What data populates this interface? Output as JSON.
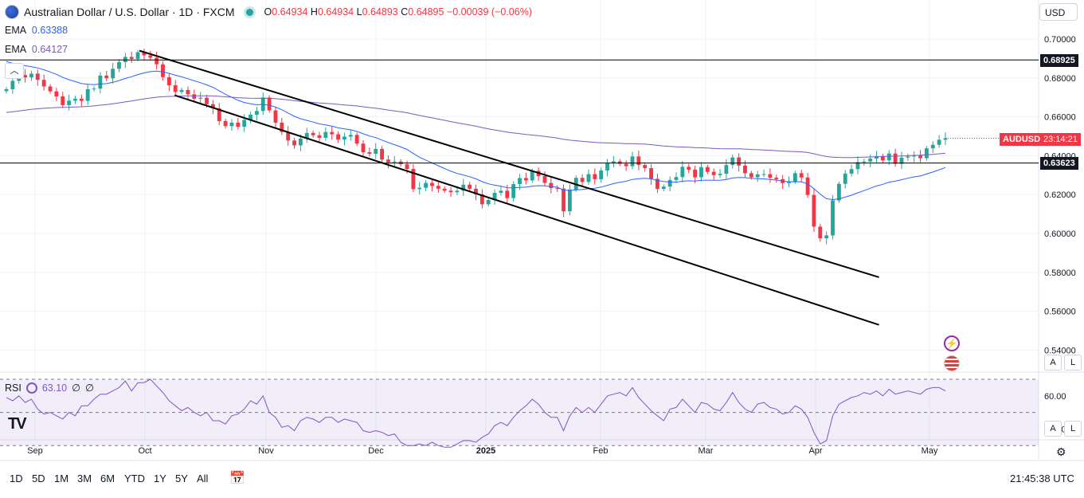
{
  "header": {
    "symbol_title": "Australian Dollar / U.S. Dollar · 1D · FXCM",
    "open_label": "O",
    "open": "0.64934",
    "high_label": "H",
    "high": "0.64934",
    "low_label": "L",
    "low": "0.64893",
    "close_label": "C",
    "close": "0.64895",
    "change": "−0.00039 (−0.06%)"
  },
  "indicators": {
    "ema1_label": "EMA",
    "ema1_value": "0.63388",
    "ema2_label": "EMA",
    "ema2_value": "0.64127",
    "rsi_label": "RSI",
    "rsi_value": "63.10",
    "rsi_extra1": "∅",
    "rsi_extra2": "∅"
  },
  "currency": "USD",
  "price_tags": {
    "hline_upper": "0.68925",
    "hline_lower": "0.63623",
    "symbol_label": "AUDUSD",
    "countdown": "23:14:21"
  },
  "y_axis_labels": [
    "0.70000",
    "0.68000",
    "0.66000",
    "0.64000",
    "0.62000",
    "0.60000",
    "0.58000",
    "0.56000",
    "0.54000"
  ],
  "rsi_axis_labels": [
    "60.00",
    "40.00"
  ],
  "x_axis_labels": [
    "Sep",
    "Oct",
    "Nov",
    "Dec",
    "2025",
    "Feb",
    "Mar",
    "Apr",
    "May"
  ],
  "range_buttons": [
    "1D",
    "5D",
    "1M",
    "3M",
    "6M",
    "YTD",
    "1Y",
    "5Y",
    "All"
  ],
  "clock": "21:45:38 UTC",
  "scale_buttons": {
    "auto": "A",
    "log": "L"
  },
  "collapse_icon": "chevron-up-icon",
  "logo_text": "TV",
  "colors": {
    "up": "#26a69a",
    "down": "#f23645",
    "ema_fast": "#2962ff",
    "ema_slow": "#7e57c2",
    "rsi": "#7e57c2",
    "tag": "#f23645"
  },
  "chart_data": [
    {
      "type": "candlestick",
      "title": "Australian Dollar / U.S. Dollar · 1D · FXCM",
      "x_labels": [
        "Sep",
        "Oct",
        "Nov",
        "Dec",
        "2025",
        "Feb",
        "Mar",
        "Apr",
        "May"
      ],
      "ylim": [
        0.535,
        0.708
      ],
      "grid": true,
      "closes": [
        0.6742,
        0.6785,
        0.6815,
        0.6803,
        0.6822,
        0.679,
        0.6756,
        0.6731,
        0.6705,
        0.666,
        0.6683,
        0.6693,
        0.6682,
        0.6742,
        0.6745,
        0.6812,
        0.6798,
        0.6847,
        0.6881,
        0.6908,
        0.6898,
        0.6932,
        0.6916,
        0.6904,
        0.687,
        0.6804,
        0.6762,
        0.6728,
        0.6738,
        0.6716,
        0.6693,
        0.6698,
        0.6665,
        0.6644,
        0.6578,
        0.6552,
        0.657,
        0.6549,
        0.6584,
        0.6611,
        0.663,
        0.6699,
        0.6633,
        0.657,
        0.6522,
        0.6478,
        0.6453,
        0.6488,
        0.6517,
        0.6505,
        0.6492,
        0.6522,
        0.651,
        0.6483,
        0.6498,
        0.6507,
        0.6462,
        0.6418,
        0.641,
        0.6435,
        0.638,
        0.6366,
        0.637,
        0.6356,
        0.6332,
        0.6228,
        0.6235,
        0.626,
        0.6245,
        0.623,
        0.622,
        0.6212,
        0.622,
        0.6251,
        0.623,
        0.6201,
        0.615,
        0.6172,
        0.6209,
        0.622,
        0.6182,
        0.6254,
        0.6285,
        0.6273,
        0.6322,
        0.6295,
        0.626,
        0.6233,
        0.6231,
        0.6114,
        0.6226,
        0.6286,
        0.6265,
        0.6305,
        0.6279,
        0.6324,
        0.6362,
        0.6371,
        0.6358,
        0.6346,
        0.6396,
        0.6352,
        0.6336,
        0.6281,
        0.6229,
        0.6241,
        0.6275,
        0.629,
        0.6343,
        0.6328,
        0.6289,
        0.6341,
        0.6317,
        0.63,
        0.6307,
        0.6352,
        0.6391,
        0.6349,
        0.631,
        0.6289,
        0.6304,
        0.6305,
        0.6287,
        0.6279,
        0.6259,
        0.6267,
        0.631,
        0.6288,
        0.6198,
        0.6035,
        0.5975,
        0.599,
        0.617,
        0.6255,
        0.6308,
        0.6331,
        0.6367,
        0.637,
        0.6385,
        0.6398,
        0.6376,
        0.6411,
        0.6358,
        0.639,
        0.6396,
        0.6402,
        0.6387,
        0.6438,
        0.6456,
        0.6482,
        0.649
      ],
      "opens_offset": "derived",
      "ema_fast_last": 0.63388,
      "ema_slow_last": 0.64127,
      "horizontal_lines": [
        0.68925,
        0.63623
      ],
      "channel_lines": [
        {
          "start": {
            "date": "2024-09-30",
            "price": 0.694
          },
          "end": {
            "date": "2025-04-07",
            "price": 0.5775
          }
        },
        {
          "start": {
            "date": "2024-10-09",
            "price": 0.6711
          },
          "end": {
            "date": "2025-04-07",
            "price": 0.553
          }
        }
      ]
    },
    {
      "type": "line",
      "title": "RSI",
      "ylim": [
        24,
        76
      ],
      "bands": [
        30,
        50,
        70
      ],
      "last_value": 63.1,
      "values": [
        59,
        57,
        60,
        56,
        58,
        52,
        49,
        50,
        48,
        46,
        50,
        48,
        54,
        54,
        58,
        61,
        61,
        63,
        65,
        69,
        63,
        68,
        68,
        70,
        66,
        62,
        57,
        54,
        51,
        53,
        50,
        48,
        50,
        45,
        45,
        43,
        48,
        49,
        52,
        57,
        55,
        60,
        50,
        47,
        41,
        42,
        39,
        45,
        47,
        46,
        44,
        47,
        47,
        44,
        46,
        45,
        44,
        39,
        38,
        39,
        38,
        36,
        37,
        32,
        30,
        30,
        31,
        30,
        32,
        30,
        29,
        29,
        31,
        33,
        33,
        32,
        35,
        37,
        42,
        44,
        42,
        47,
        51,
        54,
        58,
        55,
        50,
        47,
        47,
        39,
        48,
        53,
        50,
        53,
        50,
        55,
        60,
        61,
        62,
        60,
        65,
        59,
        55,
        51,
        48,
        45,
        52,
        53,
        58,
        54,
        50,
        56,
        55,
        52,
        51,
        56,
        62,
        56,
        52,
        50,
        55,
        56,
        53,
        52,
        49,
        50,
        54,
        52,
        47,
        38,
        31,
        33,
        48,
        55,
        57,
        59,
        60,
        62,
        61,
        63,
        60,
        64,
        61,
        62,
        63,
        62,
        61,
        64,
        65,
        65,
        63
      ]
    }
  ]
}
